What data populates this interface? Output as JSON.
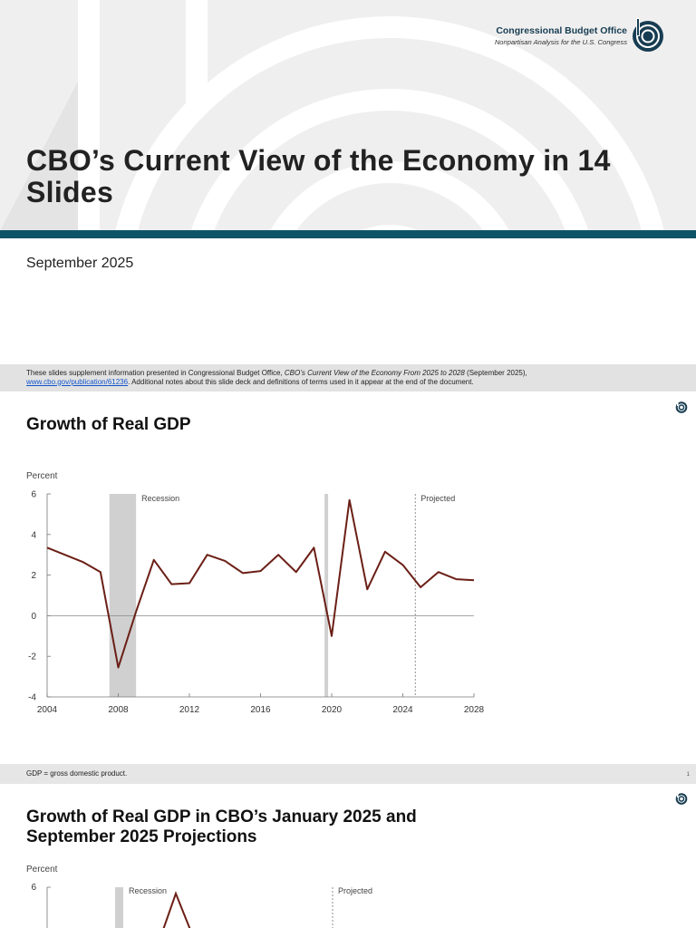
{
  "title_slide": {
    "title": "CBO’s Current View of the Economy in 14 Slides",
    "date": "September 2025",
    "org_name": "Congressional Budget Office",
    "org_tagline": "Nonpartisan Analysis for the U.S. Congress",
    "footer_pre": "These slides supplement information presented in Congressional Budget Office, ",
    "footer_pub": "CBO’s Current View of the Economy From 2025 to 2028",
    "footer_mid": " (September 2025),",
    "footer_link": "www.cbo.gov/publication/61236",
    "footer_post": ". Additional notes about this slide deck and definitions of terms used in it appear at the end of the document."
  },
  "slide1": {
    "title": "Growth of Real GDP",
    "footnote": "GDP = gross domestic product.",
    "page_number": "1"
  },
  "slide2": {
    "title_line1": "Growth of Real GDP in CBO’s January 2025 and",
    "title_line2": "September 2025 Projections"
  },
  "colors": {
    "teal": "#0e5468",
    "line": "#6b1f16",
    "recession": "#d0d0d0",
    "footer_bg": "#e2e2e2"
  },
  "chart_data": [
    {
      "type": "line",
      "ylabel": "Percent",
      "ylim": [
        -4,
        6
      ],
      "yticks": [
        "6",
        "4",
        "2",
        "0",
        "-2",
        "-4"
      ],
      "xlim": [
        2004,
        2028
      ],
      "xticks": [
        "2004",
        "2008",
        "2012",
        "2016",
        "2020",
        "2024",
        "2028"
      ],
      "annotations": [
        "Recession",
        "Projected"
      ],
      "recessions": [
        [
          2007.5,
          2009
        ],
        [
          2019.6,
          2019.8
        ]
      ],
      "projected_start": 2024.7,
      "x": [
        2004,
        2005,
        2006,
        2007,
        2008,
        2009,
        2010,
        2011,
        2012,
        2013,
        2014,
        2015,
        2016,
        2017,
        2018,
        2019,
        2020,
        2021,
        2022,
        2023,
        2024,
        2025,
        2026,
        2027,
        2028
      ],
      "y": [
        3.35,
        3.0,
        2.65,
        2.15,
        -2.55,
        0.2,
        2.75,
        1.55,
        1.6,
        3.0,
        2.7,
        2.1,
        2.2,
        3.0,
        2.15,
        3.35,
        -1.0,
        5.7,
        1.3,
        3.15,
        2.5,
        1.4,
        2.15,
        1.8,
        1.75
      ]
    },
    {
      "type": "line",
      "ylabel": "Percent",
      "yticks": [
        "6"
      ],
      "annotations": [
        "Recession",
        "Projected"
      ]
    }
  ]
}
